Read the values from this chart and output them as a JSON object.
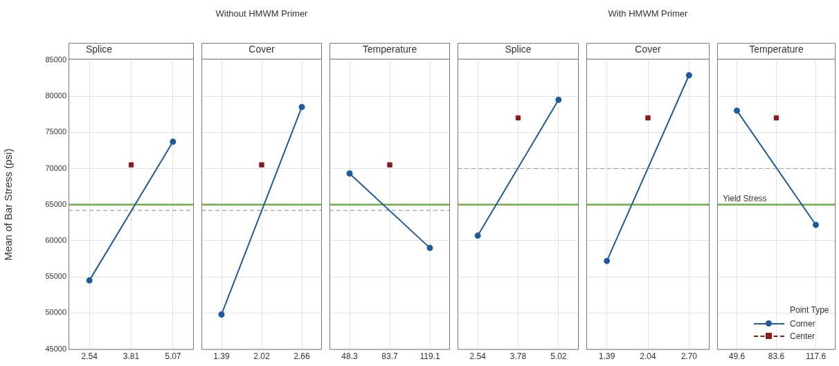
{
  "chart_data": [
    {
      "type": "line",
      "title": "Splice",
      "ylabel": "Mean of Bar Stress (psi)",
      "categories": [
        "2.54",
        "3.81",
        "5.07"
      ],
      "series": [
        {
          "color": "#1f5b99",
          "marker": "circle",
          "values": [
            54500,
            null,
            73700
          ]
        },
        {
          "type": "scatter",
          "color": "#8b1a1a",
          "marker": "square",
          "values": [
            null,
            70500,
            null
          ]
        }
      ],
      "ylim": [
        45000,
        85000
      ],
      "yticks": [
        45000,
        50000,
        55000,
        60000,
        65000,
        70000,
        75000,
        80000,
        85000
      ],
      "grid": true,
      "ref_lines": [
        {
          "axis": "y",
          "value": 65000,
          "color": "#70ad47"
        },
        {
          "axis": "y",
          "value": 64200,
          "color": "#a0a0a0",
          "line_style": "dashed"
        }
      ]
    },
    {
      "type": "line",
      "title": "Cover",
      "subtitle": "Without HMWM Primer",
      "categories": [
        "1.39",
        "2.02",
        "2.66"
      ],
      "series": [
        {
          "color": "#1f5b99",
          "marker": "circle",
          "values": [
            49800,
            null,
            78500
          ]
        },
        {
          "type": "scatter",
          "color": "#8b1a1a",
          "marker": "square",
          "values": [
            null,
            70500,
            null
          ]
        }
      ],
      "ylim": [
        45000,
        85000
      ],
      "yticks": [
        45000,
        50000,
        55000,
        60000,
        65000,
        70000,
        75000,
        80000,
        85000
      ],
      "grid": true,
      "tick_labels": "x",
      "ref_lines": [
        {
          "axis": "y",
          "value": 65000,
          "color": "#70ad47"
        },
        {
          "axis": "y",
          "value": 64200,
          "color": "#a0a0a0",
          "line_style": "dashed"
        }
      ]
    },
    {
      "type": "line",
      "title": "Temperature",
      "categories": [
        "48.3",
        "83.7",
        "119.1"
      ],
      "series": [
        {
          "color": "#1f5b99",
          "marker": "circle",
          "values": [
            69300,
            null,
            59000
          ]
        },
        {
          "type": "scatter",
          "color": "#8b1a1a",
          "marker": "square",
          "values": [
            null,
            70500,
            null
          ]
        }
      ],
      "ylim": [
        45000,
        85000
      ],
      "yticks": [
        45000,
        50000,
        55000,
        60000,
        65000,
        70000,
        75000,
        80000,
        85000
      ],
      "grid": true,
      "tick_labels": "x",
      "ref_lines": [
        {
          "axis": "y",
          "value": 65000,
          "color": "#70ad47"
        },
        {
          "axis": "y",
          "value": 64200,
          "color": "#a0a0a0",
          "line_style": "dashed"
        }
      ]
    },
    {
      "type": "line",
      "title": "Splice",
      "categories": [
        "2.54",
        "3.78",
        "5.02"
      ],
      "series": [
        {
          "color": "#1f5b99",
          "marker": "circle",
          "values": [
            60700,
            null,
            79500
          ]
        },
        {
          "type": "scatter",
          "color": "#8b1a1a",
          "marker": "square",
          "values": [
            null,
            77000,
            null
          ]
        }
      ],
      "ylim": [
        45000,
        85000
      ],
      "yticks": [
        45000,
        50000,
        55000,
        60000,
        65000,
        70000,
        75000,
        80000,
        85000
      ],
      "grid": true,
      "tick_labels": "x",
      "ref_lines": [
        {
          "axis": "y",
          "value": 65000,
          "color": "#70ad47"
        },
        {
          "axis": "y",
          "value": 70000,
          "color": "#a0a0a0",
          "line_style": "dashed"
        }
      ]
    },
    {
      "type": "line",
      "title": "Cover",
      "subtitle": "With HMWM Primer",
      "categories": [
        "1.39",
        "2.04",
        "2.70"
      ],
      "series": [
        {
          "color": "#1f5b99",
          "marker": "circle",
          "values": [
            57200,
            null,
            82900
          ]
        },
        {
          "type": "scatter",
          "color": "#8b1a1a",
          "marker": "square",
          "values": [
            null,
            77000,
            null
          ]
        }
      ],
      "ylim": [
        45000,
        85000
      ],
      "yticks": [
        45000,
        50000,
        55000,
        60000,
        65000,
        70000,
        75000,
        80000,
        85000
      ],
      "grid": true,
      "tick_labels": "x",
      "ref_lines": [
        {
          "axis": "y",
          "value": 65000,
          "color": "#70ad47"
        },
        {
          "axis": "y",
          "value": 70000,
          "color": "#a0a0a0",
          "line_style": "dashed"
        }
      ]
    },
    {
      "type": "line",
      "title": "Temperature",
      "categories": [
        "49.6",
        "83.6",
        "117.6"
      ],
      "series": [
        {
          "name": "Corner",
          "color": "#1f5b99",
          "marker": "circle",
          "values": [
            78000,
            null,
            62200
          ]
        },
        {
          "name": "Center",
          "type": "scatter",
          "color": "#8b1a1a",
          "marker": "square",
          "line_style": "dashed",
          "values": [
            null,
            77000,
            null
          ]
        }
      ],
      "ylim": [
        45000,
        85000
      ],
      "yticks": [
        45000,
        50000,
        55000,
        60000,
        65000,
        70000,
        75000,
        80000,
        85000
      ],
      "grid": true,
      "tick_labels": "x",
      "legend": "bottom right",
      "legend_title": "Point Type",
      "ref_lines": [
        {
          "axis": "y",
          "value": 65000,
          "color": "#70ad47",
          "label": "Yield Stress"
        },
        {
          "axis": "y",
          "value": 70000,
          "color": "#a0a0a0",
          "line_style": "dashed"
        }
      ]
    }
  ]
}
